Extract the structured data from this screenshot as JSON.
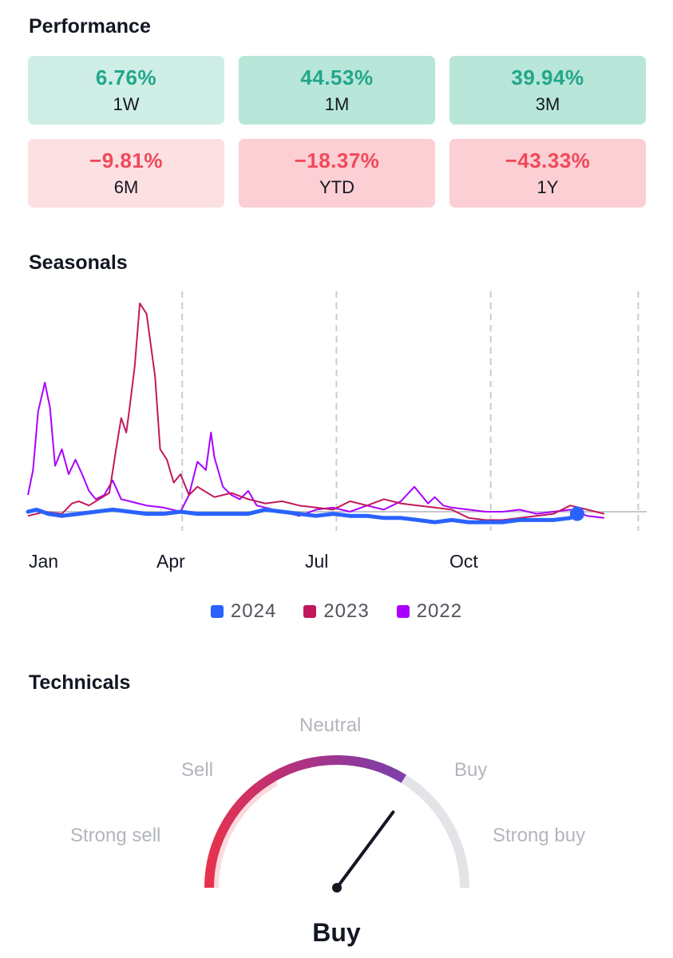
{
  "performance": {
    "title": "Performance",
    "cards": [
      {
        "value": "6.76%",
        "period": "1W",
        "trend": "positive"
      },
      {
        "value": "44.53%",
        "period": "1M",
        "trend": "positive"
      },
      {
        "value": "39.94%",
        "period": "3M",
        "trend": "positive"
      },
      {
        "value": "−9.81%",
        "period": "6M",
        "trend": "negative"
      },
      {
        "value": "−18.37%",
        "period": "YTD",
        "trend": "negative"
      },
      {
        "value": "−43.33%",
        "period": "1Y",
        "trend": "negative"
      }
    ]
  },
  "seasonals": {
    "title": "Seasonals",
    "months": [
      "Jan",
      "Apr",
      "Jul",
      "Oct"
    ],
    "legend": [
      {
        "label": "2024",
        "color": "#2962ff"
      },
      {
        "label": "2023",
        "color": "#c2185b"
      },
      {
        "label": "2022",
        "color": "#aa00ff"
      }
    ]
  },
  "chart_data": {
    "type": "line",
    "title": "Seasonals",
    "xlabel": "",
    "ylabel": "",
    "x_ticks": [
      "Jan",
      "Apr",
      "Jul",
      "Oct"
    ],
    "x_range": [
      0,
      365
    ],
    "ylim": [
      -8,
      100
    ],
    "grid": "vertical dashed quarter lines",
    "series": [
      {
        "name": "2024",
        "color": "#2962ff",
        "x": [
          0,
          5,
          12,
          20,
          30,
          40,
          50,
          60,
          70,
          80,
          90,
          100,
          110,
          120,
          130,
          140,
          150,
          160,
          170,
          180,
          190,
          200,
          210,
          220,
          230,
          240,
          250,
          260,
          270,
          280,
          290,
          300,
          310,
          320,
          324
        ],
        "y": [
          0,
          1,
          -1,
          -2,
          -1,
          0,
          1,
          0,
          -1,
          -1,
          0,
          -1,
          -1,
          -1,
          -1,
          1,
          0,
          -1,
          -2,
          -1,
          -2,
          -2,
          -3,
          -3,
          -4,
          -5,
          -4,
          -5,
          -5,
          -5,
          -4,
          -4,
          -4,
          -3,
          -1
        ]
      },
      {
        "name": "2023",
        "color": "#c2185b",
        "x": [
          0,
          10,
          20,
          26,
          30,
          36,
          42,
          48,
          52,
          55,
          58,
          60,
          63,
          66,
          70,
          75,
          78,
          82,
          86,
          90,
          95,
          100,
          110,
          120,
          130,
          140,
          150,
          160,
          170,
          180,
          190,
          200,
          210,
          220,
          230,
          240,
          250,
          260,
          270,
          280,
          290,
          300,
          310,
          320,
          330,
          340
        ],
        "y": [
          -2,
          0,
          -1,
          4,
          5,
          3,
          6,
          9,
          30,
          45,
          38,
          50,
          70,
          100,
          95,
          65,
          30,
          25,
          14,
          18,
          8,
          12,
          7,
          9,
          6,
          4,
          5,
          3,
          2,
          1,
          5,
          3,
          6,
          4,
          3,
          2,
          1,
          -3,
          -4,
          -4,
          -3,
          -2,
          -1,
          3,
          1,
          -1
        ]
      },
      {
        "name": "2022",
        "color": "#aa00ff",
        "x": [
          0,
          3,
          6,
          10,
          13,
          16,
          20,
          24,
          28,
          32,
          36,
          40,
          45,
          50,
          55,
          60,
          65,
          70,
          80,
          90,
          95,
          100,
          105,
          108,
          110,
          115,
          120,
          125,
          130,
          135,
          140,
          150,
          160,
          170,
          180,
          190,
          200,
          210,
          220,
          228,
          232,
          236,
          240,
          245,
          250,
          260,
          270,
          280,
          290,
          300,
          310,
          320,
          330,
          340
        ],
        "y": [
          8,
          20,
          48,
          62,
          50,
          22,
          30,
          18,
          25,
          18,
          10,
          6,
          8,
          15,
          6,
          5,
          4,
          3,
          2,
          0,
          8,
          24,
          20,
          38,
          26,
          12,
          8,
          6,
          10,
          3,
          2,
          0,
          -2,
          1,
          2,
          0,
          3,
          1,
          5,
          12,
          8,
          4,
          7,
          3,
          2,
          1,
          0,
          0,
          1,
          -1,
          0,
          1,
          -2,
          -3
        ]
      }
    ],
    "current_marker": {
      "series": "2024",
      "x": 324
    }
  },
  "technicals": {
    "title": "Technicals",
    "labels": {
      "strong_sell": "Strong sell",
      "sell": "Sell",
      "neutral": "Neutral",
      "buy": "Buy",
      "strong_buy": "Strong buy"
    },
    "gauge_value": 0.62,
    "result": "Buy"
  }
}
